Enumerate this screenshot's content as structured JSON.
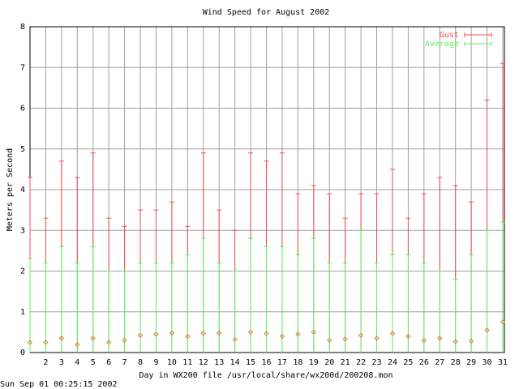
{
  "chart_data": {
    "type": "errorbar",
    "title": "Wind Speed for August 2002",
    "xlabel": "Day in WX200 file /usr/local/share/wx200d/200208.mon",
    "ylabel": "Meters per Second",
    "footer": "Sun Sep 01 00:25:15 2002",
    "x": [
      1,
      2,
      3,
      4,
      5,
      6,
      7,
      8,
      9,
      10,
      11,
      12,
      13,
      14,
      15,
      16,
      17,
      18,
      19,
      20,
      21,
      22,
      23,
      24,
      25,
      26,
      27,
      28,
      29,
      30,
      31
    ],
    "xlim": [
      1,
      31
    ],
    "xticks": [
      2,
      3,
      4,
      5,
      6,
      7,
      8,
      9,
      10,
      11,
      12,
      13,
      14,
      15,
      16,
      17,
      18,
      19,
      20,
      21,
      22,
      23,
      24,
      25,
      26,
      27,
      28,
      29,
      30,
      31
    ],
    "ylim": [
      0,
      8
    ],
    "yticks": [
      0,
      1,
      2,
      3,
      4,
      5,
      6,
      7,
      8
    ],
    "grid": true,
    "legend": "top-right",
    "series": [
      {
        "name": "Gust",
        "color": "#f05050",
        "values": [
          4.3,
          3.3,
          4.7,
          4.3,
          4.9,
          3.3,
          3.1,
          3.5,
          3.5,
          3.7,
          3.1,
          4.9,
          3.5,
          3.0,
          4.9,
          4.7,
          4.9,
          3.9,
          4.1,
          3.9,
          3.3,
          3.9,
          3.9,
          4.5,
          3.3,
          3.9,
          4.3,
          4.1,
          3.7,
          6.2,
          7.1
        ]
      },
      {
        "name": "Average",
        "color": "#60f060",
        "values": [
          2.3,
          2.2,
          2.6,
          2.2,
          2.6,
          2.0,
          2.0,
          2.2,
          2.2,
          2.2,
          2.4,
          2.8,
          2.2,
          2.0,
          2.8,
          2.6,
          2.6,
          2.4,
          2.8,
          2.2,
          2.2,
          3.0,
          2.2,
          2.4,
          2.4,
          2.2,
          2.0,
          1.8,
          2.4,
          3.0,
          3.2
        ],
        "marker_values": [
          0.25,
          0.25,
          0.35,
          0.2,
          0.35,
          0.25,
          0.3,
          0.42,
          0.45,
          0.48,
          0.4,
          0.47,
          0.48,
          0.32,
          0.5,
          0.47,
          0.4,
          0.45,
          0.5,
          0.3,
          0.33,
          0.42,
          0.35,
          0.47,
          0.4,
          0.3,
          0.35,
          0.27,
          0.28,
          0.55,
          0.75
        ]
      }
    ]
  }
}
